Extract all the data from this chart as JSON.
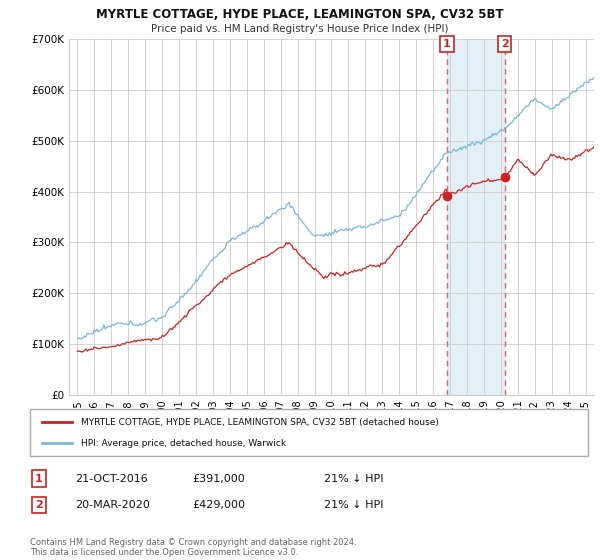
{
  "title1": "MYRTLE COTTAGE, HYDE PLACE, LEAMINGTON SPA, CV32 5BT",
  "title2": "Price paid vs. HM Land Registry's House Price Index (HPI)",
  "ytick_labels": [
    "£0",
    "£100K",
    "£200K",
    "£300K",
    "£400K",
    "£500K",
    "£600K",
    "£700K"
  ],
  "yticks": [
    0,
    100000,
    200000,
    300000,
    400000,
    500000,
    600000,
    700000
  ],
  "hpi_color": "#7ab8d9",
  "price_color": "#cc2222",
  "vline_color": "#dd6666",
  "shade_color": "#d8eaf5",
  "marker1_year": 2016.82,
  "marker1_price": 391000,
  "marker2_year": 2020.22,
  "marker2_price": 429000,
  "legend_line1": "MYRTLE COTTAGE, HYDE PLACE, LEAMINGTON SPA, CV32 5BT (detached house)",
  "legend_line2": "HPI: Average price, detached house, Warwick",
  "table_row1": [
    "1",
    "21-OCT-2016",
    "£391,000",
    "21% ↓ HPI"
  ],
  "table_row2": [
    "2",
    "20-MAR-2020",
    "£429,000",
    "21% ↓ HPI"
  ],
  "footnote": "Contains HM Land Registry data © Crown copyright and database right 2024.\nThis data is licensed under the Open Government Licence v3.0.",
  "background_color": "#ffffff",
  "grid_color": "#cccccc",
  "xmin": 1994.5,
  "xmax": 2025.5,
  "ymin": 0,
  "ymax": 700000
}
